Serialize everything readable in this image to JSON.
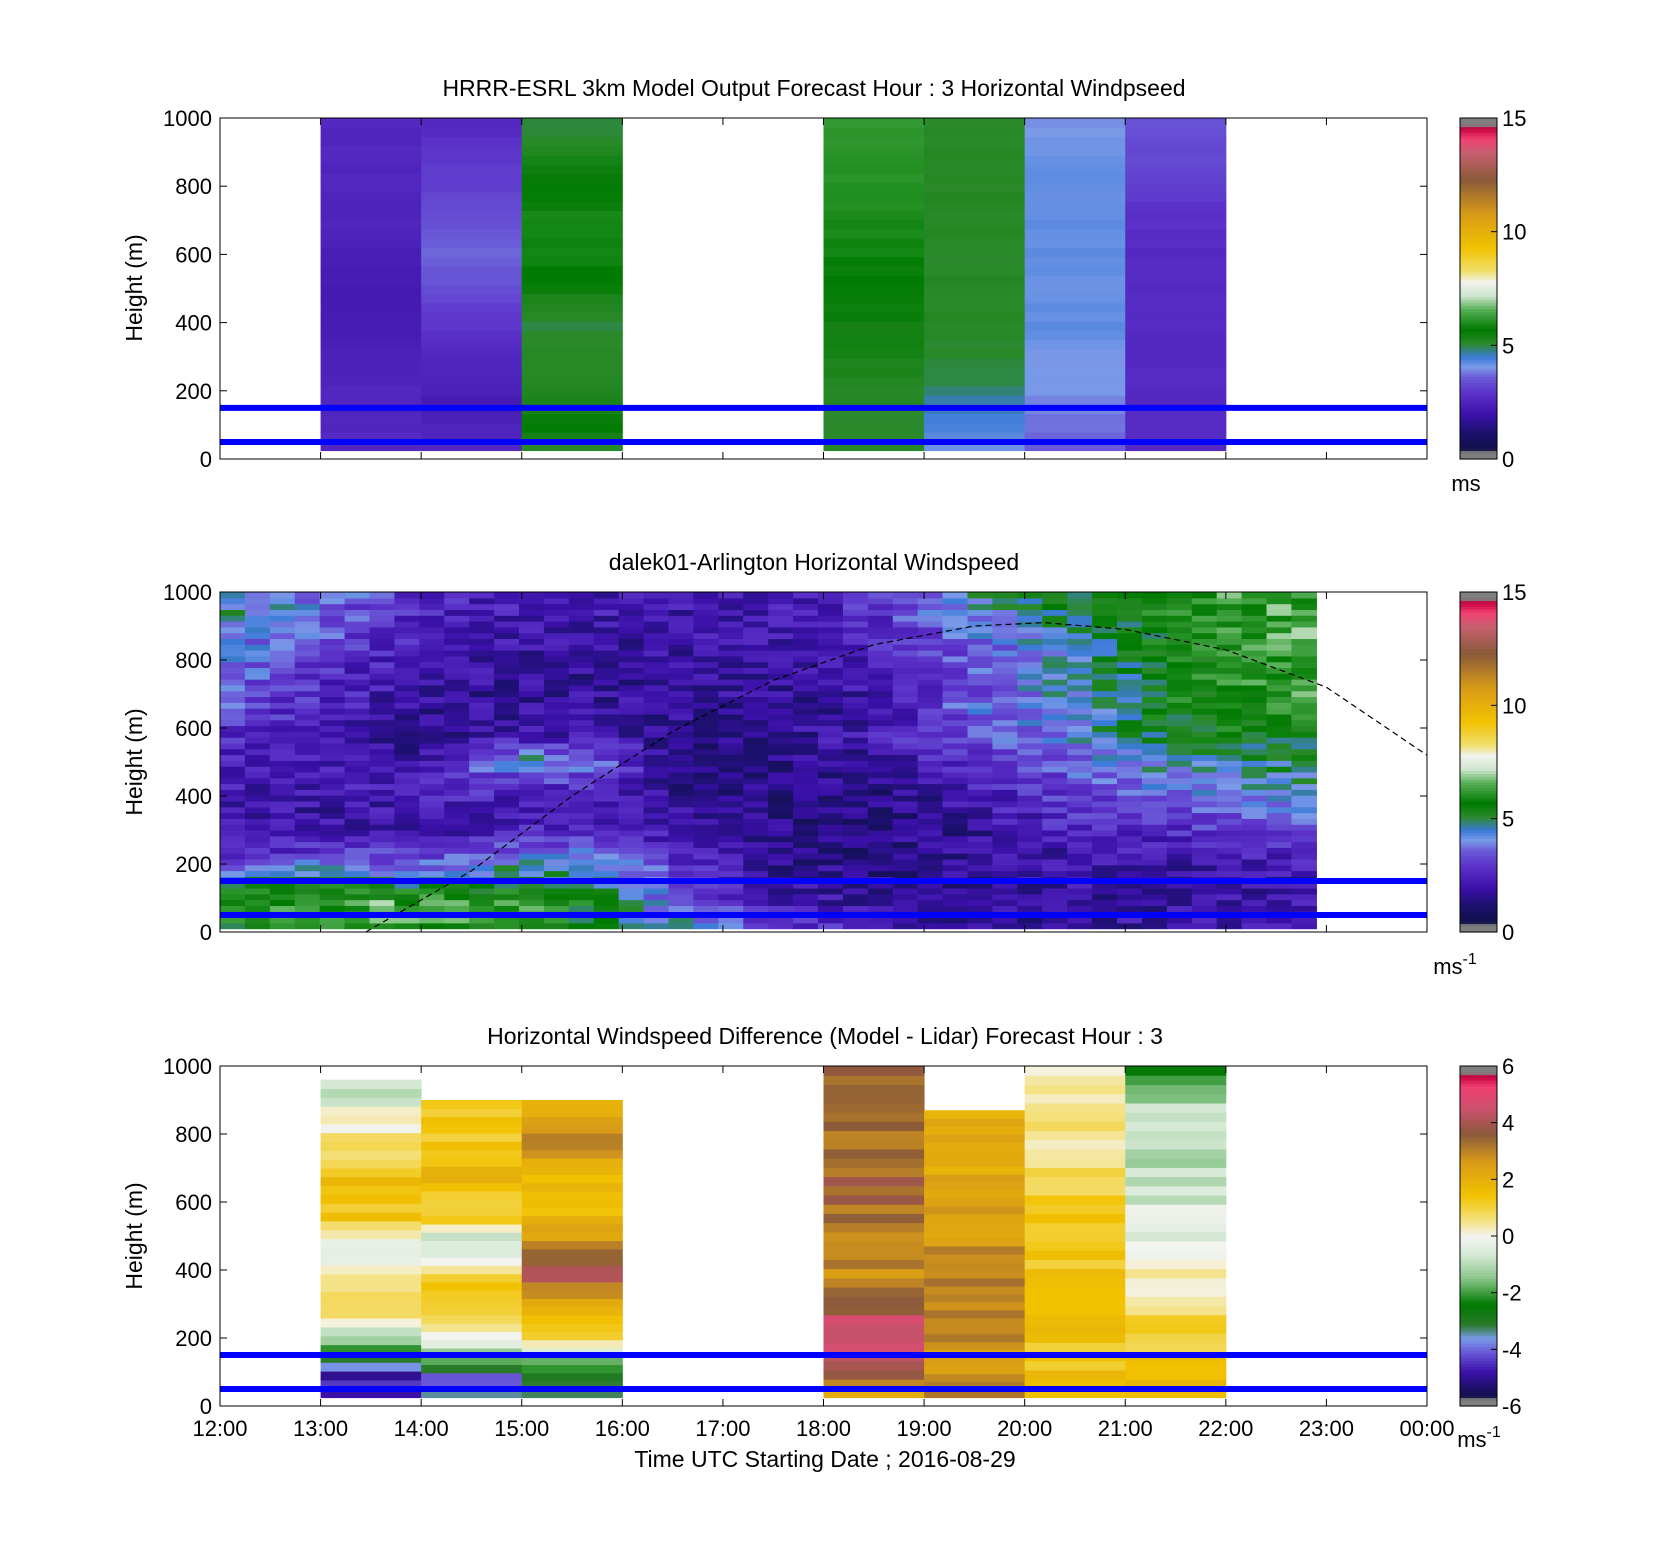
{
  "figure": {
    "title_top": "HRRR-ESRL 3km Model Output   Forecast Hour : 3 Horizontal Windpseed",
    "title_mid": "dalek01-Arlington  Horizontal Windspeed",
    "title_bot": "Horizontal Windspeed Difference (Model - Lidar) Forecast Hour : 3",
    "ylabel": "Height (m)",
    "xlabel": "Time UTC  Starting Date ; 2016-08-29"
  },
  "chart_data": [
    {
      "type": "heatmap",
      "title": "HRRR-ESRL 3km Model Output   Forecast Hour : 3 Horizontal Windpseed",
      "ylabel": "Height (m)",
      "ylim": [
        0,
        1000
      ],
      "yticks": [
        0,
        200,
        400,
        600,
        800,
        1000
      ],
      "x_range_hours": [
        12,
        24
      ],
      "colorbar": {
        "ticks": [
          0,
          5,
          10,
          15
        ],
        "range": [
          0,
          15
        ],
        "unit": "ms"
      },
      "reference_lines_m": [
        50,
        150
      ],
      "columns": [
        {
          "t_start": 13,
          "t_end": 14,
          "z_top": 1000,
          "speed": [
            2.4,
            2.3,
            2.3,
            2.2,
            2.2,
            2.0,
            1.9,
            1.9,
            2.0,
            2.2,
            2.2,
            2.3,
            2.3,
            2.3,
            2.3
          ]
        },
        {
          "t_start": 14,
          "t_end": 15,
          "z_top": 1000,
          "speed": [
            2.4,
            2.2,
            2.0,
            2.1,
            2.3,
            2.6,
            2.8,
            3.2,
            3.4,
            3.4,
            3.1,
            2.9,
            2.8,
            2.6,
            2.3
          ]
        },
        {
          "t_start": 15,
          "t_end": 16,
          "z_top": 1000,
          "speed": [
            4.8,
            5.5,
            5.2,
            5.0,
            5.0,
            4.9,
            5.0,
            5.5,
            5.7,
            5.8,
            5.8,
            5.6,
            5.3,
            5.0,
            4.9
          ]
        },
        {
          "t_start": 18,
          "t_end": 19,
          "z_top": 1000,
          "speed": [
            5.0,
            4.9,
            5.0,
            5.1,
            5.2,
            5.3,
            5.4,
            5.6,
            5.7,
            5.8,
            5.9,
            6.0,
            6.0,
            6.1,
            6.1
          ]
        },
        {
          "t_start": 19,
          "t_end": 20,
          "z_top": 1000,
          "speed": [
            3.8,
            4.2,
            4.5,
            4.8,
            4.9,
            5.0,
            5.0,
            5.0,
            5.0,
            5.0,
            5.0,
            5.0,
            5.0,
            5.0,
            5.0
          ]
        },
        {
          "t_start": 20,
          "t_end": 21,
          "z_top": 1000,
          "speed": [
            3.3,
            3.5,
            3.7,
            3.8,
            3.8,
            4.0,
            4.0,
            4.0,
            4.0,
            4.0,
            4.0,
            4.0,
            4.0,
            3.9,
            3.8
          ]
        },
        {
          "t_start": 21,
          "t_end": 22,
          "z_top": 1000,
          "speed": [
            2.4,
            2.4,
            2.4,
            2.4,
            2.4,
            2.4,
            2.4,
            2.4,
            2.4,
            2.5,
            2.6,
            2.8,
            3.0,
            3.1,
            3.3
          ]
        }
      ]
    },
    {
      "type": "heatmap",
      "title": "dalek01-Arlington  Horizontal Windspeed",
      "ylabel": "Height (m)",
      "ylim": [
        0,
        1000
      ],
      "yticks": [
        0,
        200,
        400,
        600,
        800,
        1000
      ],
      "x_range_hours": [
        12,
        24
      ],
      "colorbar": {
        "ticks": [
          0,
          5,
          10,
          15
        ],
        "range": [
          0,
          15
        ],
        "unit": "ms-1"
      },
      "reference_lines_m": [
        50,
        150
      ],
      "data_span_hours": [
        12,
        22.9
      ],
      "time_profiles": [
        {
          "t": 12.0,
          "speed": [
            5.5,
            6.0,
            5.0,
            2.5,
            2.0,
            1.8,
            2.0,
            2.3,
            2.5,
            3.0,
            3.5,
            4.0,
            4.0,
            4.5,
            4.5
          ]
        },
        {
          "t": 13.0,
          "speed": [
            5.5,
            6.5,
            5.0,
            3.0,
            1.8,
            1.6,
            1.8,
            2.0,
            2.0,
            2.2,
            2.4,
            2.6,
            3.0,
            3.5,
            3.8
          ]
        },
        {
          "t": 14.0,
          "speed": [
            6.0,
            6.5,
            4.5,
            3.0,
            1.6,
            1.8,
            2.4,
            1.5,
            1.4,
            1.5,
            1.6,
            1.8,
            2.0,
            2.2,
            2.3
          ]
        },
        {
          "t": 15.0,
          "speed": [
            5.5,
            6.0,
            5.0,
            4.0,
            2.2,
            1.8,
            2.5,
            4.5,
            1.8,
            1.5,
            1.4,
            1.6,
            1.8,
            1.9,
            2.0
          ]
        },
        {
          "t": 15.75,
          "speed": [
            5.0,
            5.5,
            4.5,
            4.0,
            2.5,
            2.0,
            2.5,
            3.5,
            2.0,
            1.6,
            1.4,
            1.5,
            1.6,
            1.8,
            2.0
          ]
        },
        {
          "t": 16.5,
          "speed": [
            4.5,
            3.5,
            3.0,
            2.5,
            1.8,
            1.5,
            1.4,
            1.3,
            1.2,
            1.4,
            1.5,
            1.6,
            1.7,
            1.8,
            1.8
          ]
        },
        {
          "t": 17.5,
          "speed": [
            3.0,
            2.0,
            1.5,
            1.3,
            1.1,
            1.0,
            1.0,
            1.2,
            1.3,
            1.4,
            1.5,
            1.6,
            1.7,
            1.8,
            1.9
          ]
        },
        {
          "t": 18.5,
          "speed": [
            2.0,
            1.5,
            1.2,
            1.0,
            1.0,
            1.0,
            1.2,
            1.5,
            2.0,
            1.5,
            1.8,
            2.0,
            2.2,
            2.4,
            2.6
          ]
        },
        {
          "t": 19.5,
          "speed": [
            1.5,
            1.4,
            1.3,
            1.3,
            1.5,
            1.8,
            2.0,
            2.5,
            3.0,
            3.5,
            3.2,
            3.0,
            3.5,
            4.0,
            4.5
          ]
        },
        {
          "t": 20.5,
          "speed": [
            1.5,
            1.5,
            1.6,
            1.8,
            2.2,
            2.6,
            3.0,
            3.5,
            4.0,
            4.2,
            4.3,
            4.5,
            4.6,
            5.0,
            5.0
          ]
        },
        {
          "t": 21.5,
          "speed": [
            1.8,
            1.6,
            1.5,
            1.8,
            2.4,
            3.2,
            3.8,
            4.5,
            5.0,
            5.5,
            5.5,
            5.5,
            5.5,
            5.5,
            5.8
          ]
        },
        {
          "t": 22.9,
          "speed": [
            2.0,
            1.8,
            1.7,
            2.0,
            2.8,
            3.5,
            4.2,
            5.0,
            5.5,
            6.0,
            6.2,
            6.2,
            6.5,
            6.5,
            6.5
          ]
        }
      ],
      "boundary_curve": {
        "style": "dashed",
        "x_hours": [
          13.45,
          14.5,
          15.5,
          16.5,
          17.5,
          18.5,
          19.5,
          20.2,
          21,
          22,
          23,
          24
        ],
        "height_m": [
          0,
          180,
          400,
          590,
          740,
          845,
          900,
          910,
          890,
          830,
          720,
          520
        ]
      }
    },
    {
      "type": "heatmap",
      "title": "Horizontal Windspeed Difference (Model - Lidar) Forecast Hour : 3",
      "ylabel": "Height (m)",
      "xlabel": "Time UTC  Starting Date ; 2016-08-29",
      "ylim": [
        0,
        1000
      ],
      "yticks": [
        0,
        200,
        400,
        600,
        800,
        1000
      ],
      "x_range_hours": [
        12,
        24
      ],
      "xticks": [
        "12:00",
        "13:00",
        "14:00",
        "15:00",
        "16:00",
        "17:00",
        "18:00",
        "19:00",
        "20:00",
        "21:00",
        "22:00",
        "23:00",
        "00:00"
      ],
      "colorbar": {
        "ticks": [
          -6,
          -4,
          -2,
          0,
          2,
          4,
          6
        ],
        "range": [
          -6,
          6
        ],
        "unit": "ms-1"
      },
      "reference_lines_m": [
        50,
        150
      ],
      "columns": [
        {
          "t_start": 13,
          "t_end": 14,
          "z_top": 960,
          "diff": [
            -4.5,
            -5.2,
            -3.0,
            -1.5,
            1.0,
            1.2,
            0.6,
            -0.6,
            -0.3,
            1.4,
            1.6,
            1.5,
            1.2,
            0.6,
            0.2,
            -0.5,
            -1.2
          ]
        },
        {
          "t_start": 14,
          "t_end": 15,
          "z_top": 900,
          "diff": [
            -3.2,
            -4.5,
            -1.5,
            -0.5,
            1.0,
            1.4,
            1.3,
            -0.3,
            -0.7,
            1.2,
            1.5,
            2.0,
            1.8,
            1.5,
            1.6,
            1.4
          ]
        },
        {
          "t_start": 15,
          "t_end": 16,
          "z_top": 900,
          "diff": [
            -3.8,
            -3.5,
            -1.2,
            1.0,
            1.6,
            2.5,
            4.2,
            3.8,
            2.5,
            1.8,
            1.6,
            1.8,
            2.5,
            3.2,
            2.7,
            2.2
          ]
        },
        {
          "t_start": 18,
          "t_end": 19,
          "z_top": 1000,
          "diff": [
            1.5,
            3.6,
            4.6,
            5.0,
            4.7,
            3.4,
            3.1,
            3.0,
            3.2,
            3.4,
            3.6,
            3.8,
            3.5,
            3.4,
            3.5,
            3.8,
            3.7,
            3.7
          ]
        },
        {
          "t_start": 19,
          "t_end": 20,
          "z_top": 870,
          "diff": [
            3.0,
            3.1,
            2.8,
            2.9,
            3.0,
            3.1,
            3.2,
            3.3,
            2.8,
            2.7,
            2.6,
            2.4,
            2.3,
            2.2,
            2.4,
            2.3
          ]
        },
        {
          "t_start": 20,
          "t_end": 21,
          "z_top": 1000,
          "diff": [
            1.6,
            1.6,
            1.5,
            1.4,
            1.5,
            1.6,
            1.4,
            1.3,
            1.6,
            1.5,
            1.1,
            0.9,
            0.5,
            0.4,
            0.6,
            0.5,
            0.6,
            0.5
          ]
        },
        {
          "t_start": 21,
          "t_end": 22,
          "z_top": 1000,
          "diff": [
            1.7,
            1.5,
            1.4,
            1.3,
            1.1,
            0.7,
            0.3,
            -0.2,
            -0.4,
            -0.5,
            -0.6,
            -0.8,
            -1.0,
            -1.0,
            -0.7,
            -1.0,
            -1.6,
            -2.5
          ]
        }
      ]
    }
  ],
  "colors": {
    "reference_line": "#0000ff",
    "frame": "#000000",
    "speed_colormap": [
      [
        0.0,
        "#7f7f7f"
      ],
      [
        0.02,
        "#7f7f7f"
      ],
      [
        0.03,
        "#10104a"
      ],
      [
        0.08,
        "#1d1070"
      ],
      [
        0.13,
        "#3a10a8"
      ],
      [
        0.19,
        "#5a2fc8"
      ],
      [
        0.24,
        "#6a5ad8"
      ],
      [
        0.27,
        "#7a9ae8"
      ],
      [
        0.3,
        "#3a7ad8"
      ],
      [
        0.34,
        "#2a8a2a"
      ],
      [
        0.38,
        "#007a00"
      ],
      [
        0.44,
        "#58b058"
      ],
      [
        0.48,
        "#cfe6cf"
      ],
      [
        0.52,
        "#f2f2ee"
      ],
      [
        0.55,
        "#f0e070"
      ],
      [
        0.62,
        "#f2c200"
      ],
      [
        0.72,
        "#d89a18"
      ],
      [
        0.82,
        "#8a5a3a"
      ],
      [
        0.9,
        "#c86070"
      ],
      [
        0.94,
        "#f04070"
      ],
      [
        0.97,
        "#c80040"
      ],
      [
        0.98,
        "#7f7f7f"
      ],
      [
        1.0,
        "#7f7f7f"
      ]
    ],
    "diff_colormap": [
      [
        0.0,
        "#7f7f7f"
      ],
      [
        0.02,
        "#7f7f7f"
      ],
      [
        0.03,
        "#10104a"
      ],
      [
        0.1,
        "#3a10a8"
      ],
      [
        0.16,
        "#6a5ad8"
      ],
      [
        0.2,
        "#7a9ae8"
      ],
      [
        0.24,
        "#2a7a2a"
      ],
      [
        0.3,
        "#007a00"
      ],
      [
        0.38,
        "#90c890"
      ],
      [
        0.45,
        "#d8ead8"
      ],
      [
        0.5,
        "#f4f4f0"
      ],
      [
        0.55,
        "#f4e07a"
      ],
      [
        0.62,
        "#f2c200"
      ],
      [
        0.72,
        "#d89a18"
      ],
      [
        0.8,
        "#8a5a3a"
      ],
      [
        0.88,
        "#d05070"
      ],
      [
        0.94,
        "#f04070"
      ],
      [
        0.97,
        "#c80040"
      ],
      [
        0.98,
        "#7f7f7f"
      ],
      [
        1.0,
        "#7f7f7f"
      ]
    ]
  }
}
